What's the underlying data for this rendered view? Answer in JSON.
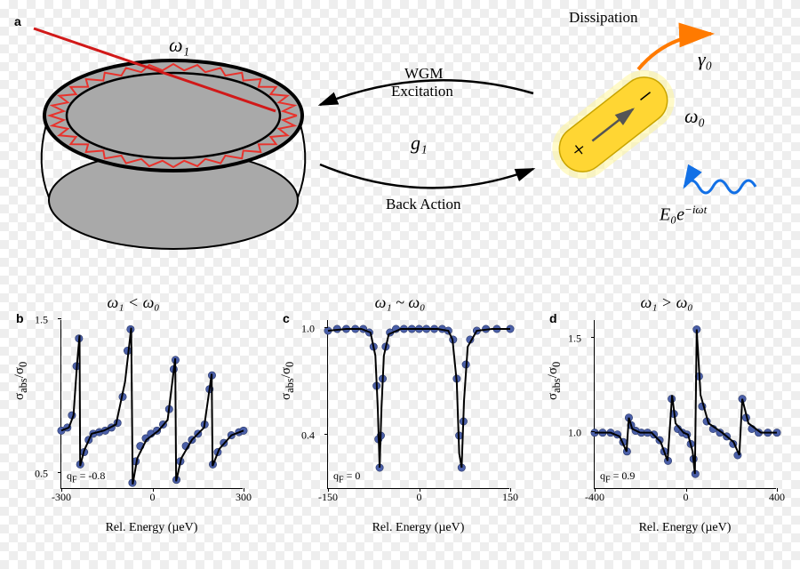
{
  "panel_a": {
    "label": "a",
    "omega1": "ω₁",
    "g1": "g₁",
    "wgm": "WGM",
    "excitation": "Excitation",
    "back_action": "Back Action",
    "dissipation": "Dissipation",
    "gamma0": "γ₀",
    "omega0": "ω₀",
    "E0": "E₀e",
    "E0_exp": "−iωt",
    "resonator_fill": "#a9a9a9",
    "resonator_stroke": "#000000",
    "zigzag_color": "#e8322c",
    "fiber_color": "#d11919",
    "rod_fill": "#ffd633",
    "rod_glow": "#fff59d",
    "diss_arrow_color": "#ff7a00",
    "wave_color": "#1270e6"
  },
  "charts": [
    {
      "label": "b",
      "title": "ω₁ < ω₀",
      "xlim": [
        -300,
        300
      ],
      "ylim": [
        0.4,
        1.5
      ],
      "xticks": [
        -300,
        0,
        300
      ],
      "yticks": [
        0.5,
        1.5
      ],
      "qf": "q_F = -0.8",
      "xlabel": "Rel. Energy (µeV)",
      "ylabel": "σ_abs/σ₀",
      "marker_color": "#4a5fa8",
      "line_color": "#000000",
      "line": [
        [
          -300,
          0.78
        ],
        [
          -275,
          0.8
        ],
        [
          -260,
          0.88
        ],
        [
          -248,
          1.22
        ],
        [
          -240,
          1.4
        ],
        [
          -238,
          0.55
        ],
        [
          -225,
          0.65
        ],
        [
          -200,
          0.76
        ],
        [
          -160,
          0.78
        ],
        [
          -120,
          0.82
        ],
        [
          -90,
          1.1
        ],
        [
          -70,
          1.45
        ],
        [
          -65,
          0.43
        ],
        [
          -50,
          0.6
        ],
        [
          -20,
          0.72
        ],
        [
          20,
          0.78
        ],
        [
          50,
          0.85
        ],
        [
          75,
          1.25
        ],
        [
          78,
          0.45
        ],
        [
          95,
          0.6
        ],
        [
          130,
          0.72
        ],
        [
          170,
          0.8
        ],
        [
          195,
          1.15
        ],
        [
          198,
          0.55
        ],
        [
          220,
          0.66
        ],
        [
          260,
          0.75
        ],
        [
          300,
          0.78
        ]
      ],
      "markers": [
        [
          -300,
          0.78
        ],
        [
          -280,
          0.8
        ],
        [
          -265,
          0.88
        ],
        [
          -250,
          1.2
        ],
        [
          -242,
          1.38
        ],
        [
          -238,
          0.56
        ],
        [
          -225,
          0.64
        ],
        [
          -210,
          0.72
        ],
        [
          -195,
          0.76
        ],
        [
          -175,
          0.77
        ],
        [
          -155,
          0.78
        ],
        [
          -135,
          0.8
        ],
        [
          -115,
          0.83
        ],
        [
          -98,
          1.0
        ],
        [
          -82,
          1.3
        ],
        [
          -72,
          1.44
        ],
        [
          -66,
          0.44
        ],
        [
          -55,
          0.58
        ],
        [
          -40,
          0.68
        ],
        [
          -22,
          0.73
        ],
        [
          -5,
          0.76
        ],
        [
          15,
          0.78
        ],
        [
          35,
          0.82
        ],
        [
          55,
          0.92
        ],
        [
          70,
          1.18
        ],
        [
          76,
          1.24
        ],
        [
          79,
          0.46
        ],
        [
          92,
          0.58
        ],
        [
          110,
          0.68
        ],
        [
          130,
          0.72
        ],
        [
          150,
          0.76
        ],
        [
          172,
          0.82
        ],
        [
          188,
          1.05
        ],
        [
          196,
          1.14
        ],
        [
          199,
          0.56
        ],
        [
          215,
          0.64
        ],
        [
          235,
          0.7
        ],
        [
          260,
          0.75
        ],
        [
          285,
          0.77
        ],
        [
          300,
          0.78
        ]
      ]
    },
    {
      "label": "c",
      "title": "ω₁ ~ ω₀",
      "xlim": [
        -150,
        150
      ],
      "ylim": [
        0.1,
        1.05
      ],
      "xticks": [
        -150,
        0,
        150
      ],
      "yticks": [
        0.4,
        1.0
      ],
      "qf": "q_F = 0",
      "xlabel": "Rel. Energy (µeV)",
      "ylabel": "σ_abs/σ₀",
      "marker_color": "#4a5fa8",
      "line_color": "#000000",
      "line": [
        [
          -150,
          0.99
        ],
        [
          -120,
          1.0
        ],
        [
          -95,
          1.0
        ],
        [
          -80,
          0.98
        ],
        [
          -72,
          0.85
        ],
        [
          -68,
          0.55
        ],
        [
          -65,
          0.22
        ],
        [
          -62,
          0.55
        ],
        [
          -58,
          0.85
        ],
        [
          -50,
          0.97
        ],
        [
          -30,
          1.0
        ],
        [
          0,
          1.0
        ],
        [
          30,
          1.0
        ],
        [
          48,
          0.99
        ],
        [
          55,
          0.94
        ],
        [
          62,
          0.7
        ],
        [
          66,
          0.3
        ],
        [
          70,
          0.22
        ],
        [
          74,
          0.6
        ],
        [
          80,
          0.9
        ],
        [
          95,
          0.99
        ],
        [
          120,
          1.0
        ],
        [
          150,
          1.0
        ]
      ],
      "markers": [
        [
          -150,
          0.99
        ],
        [
          -135,
          1.0
        ],
        [
          -120,
          1.0
        ],
        [
          -105,
          1.0
        ],
        [
          -92,
          1.0
        ],
        [
          -82,
          0.98
        ],
        [
          -75,
          0.9
        ],
        [
          -70,
          0.68
        ],
        [
          -67,
          0.38
        ],
        [
          -65,
          0.22
        ],
        [
          -63,
          0.4
        ],
        [
          -60,
          0.72
        ],
        [
          -55,
          0.9
        ],
        [
          -48,
          0.98
        ],
        [
          -38,
          1.0
        ],
        [
          -25,
          1.0
        ],
        [
          -12,
          1.0
        ],
        [
          0,
          1.0
        ],
        [
          12,
          1.0
        ],
        [
          25,
          1.0
        ],
        [
          38,
          1.0
        ],
        [
          48,
          0.99
        ],
        [
          56,
          0.94
        ],
        [
          62,
          0.72
        ],
        [
          66,
          0.4
        ],
        [
          70,
          0.22
        ],
        [
          73,
          0.48
        ],
        [
          77,
          0.8
        ],
        [
          84,
          0.94
        ],
        [
          95,
          0.99
        ],
        [
          110,
          1.0
        ],
        [
          128,
          1.0
        ],
        [
          150,
          1.0
        ]
      ]
    },
    {
      "label": "d",
      "title": "ω₁ > ω₀",
      "xlim": [
        -400,
        400
      ],
      "ylim": [
        0.7,
        1.6
      ],
      "xticks": [
        -400,
        0,
        400
      ],
      "yticks": [
        1.0,
        1.5
      ],
      "qf": "q_F = 0.9",
      "xlabel": "Rel. Energy (µeV)",
      "ylabel": "σ_abs/σ₀",
      "marker_color": "#4a5fa8",
      "line_color": "#000000",
      "line": [
        [
          -400,
          1.0
        ],
        [
          -330,
          1.0
        ],
        [
          -290,
          0.98
        ],
        [
          -260,
          0.9
        ],
        [
          -250,
          1.08
        ],
        [
          -235,
          1.02
        ],
        [
          -200,
          1.0
        ],
        [
          -150,
          1.0
        ],
        [
          -110,
          0.95
        ],
        [
          -80,
          0.85
        ],
        [
          -60,
          1.2
        ],
        [
          -45,
          1.05
        ],
        [
          -10,
          1.0
        ],
        [
          10,
          0.99
        ],
        [
          30,
          0.9
        ],
        [
          40,
          0.78
        ],
        [
          48,
          1.55
        ],
        [
          65,
          1.2
        ],
        [
          100,
          1.05
        ],
        [
          160,
          1.0
        ],
        [
          210,
          0.95
        ],
        [
          235,
          0.88
        ],
        [
          248,
          1.18
        ],
        [
          275,
          1.05
        ],
        [
          330,
          1.0
        ],
        [
          400,
          1.0
        ]
      ],
      "markers": [
        [
          -400,
          1.0
        ],
        [
          -365,
          1.0
        ],
        [
          -330,
          1.0
        ],
        [
          -300,
          0.99
        ],
        [
          -275,
          0.95
        ],
        [
          -258,
          0.9
        ],
        [
          -250,
          1.08
        ],
        [
          -240,
          1.04
        ],
        [
          -220,
          1.01
        ],
        [
          -195,
          1.0
        ],
        [
          -168,
          1.0
        ],
        [
          -140,
          0.99
        ],
        [
          -115,
          0.96
        ],
        [
          -95,
          0.9
        ],
        [
          -78,
          0.85
        ],
        [
          -62,
          1.18
        ],
        [
          -52,
          1.1
        ],
        [
          -35,
          1.02
        ],
        [
          -15,
          1.0
        ],
        [
          5,
          0.99
        ],
        [
          22,
          0.94
        ],
        [
          34,
          0.86
        ],
        [
          42,
          0.78
        ],
        [
          48,
          1.55
        ],
        [
          58,
          1.3
        ],
        [
          72,
          1.14
        ],
        [
          92,
          1.06
        ],
        [
          120,
          1.02
        ],
        [
          150,
          1.0
        ],
        [
          180,
          0.98
        ],
        [
          208,
          0.94
        ],
        [
          228,
          0.88
        ],
        [
          248,
          1.18
        ],
        [
          265,
          1.08
        ],
        [
          290,
          1.02
        ],
        [
          320,
          1.0
        ],
        [
          360,
          1.0
        ],
        [
          400,
          1.0
        ]
      ]
    }
  ]
}
